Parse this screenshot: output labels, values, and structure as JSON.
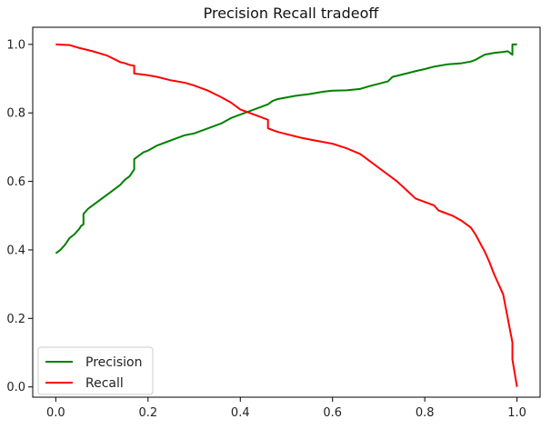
{
  "chart_data": {
    "type": "line",
    "title": "Precision Recall tradeoff",
    "xlabel": "",
    "ylabel": "",
    "xlim": [
      -0.05,
      1.05
    ],
    "ylim": [
      -0.03,
      1.05
    ],
    "x_ticks": [
      "0.0",
      "0.2",
      "0.4",
      "0.6",
      "0.8",
      "1.0"
    ],
    "y_ticks": [
      "0.0",
      "0.2",
      "0.4",
      "0.6",
      "0.8",
      "1.0"
    ],
    "grid": false,
    "legend_position": "lower-left",
    "series": [
      {
        "name": "Precision",
        "color": "#008000",
        "points": [
          [
            0.0,
            0.39
          ],
          [
            0.01,
            0.4
          ],
          [
            0.02,
            0.415
          ],
          [
            0.03,
            0.435
          ],
          [
            0.04,
            0.445
          ],
          [
            0.05,
            0.46
          ],
          [
            0.055,
            0.47
          ],
          [
            0.06,
            0.475
          ],
          [
            0.06,
            0.505
          ],
          [
            0.07,
            0.52
          ],
          [
            0.08,
            0.53
          ],
          [
            0.09,
            0.54
          ],
          [
            0.1,
            0.55
          ],
          [
            0.12,
            0.57
          ],
          [
            0.14,
            0.59
          ],
          [
            0.15,
            0.605
          ],
          [
            0.16,
            0.615
          ],
          [
            0.17,
            0.635
          ],
          [
            0.17,
            0.665
          ],
          [
            0.18,
            0.675
          ],
          [
            0.19,
            0.685
          ],
          [
            0.2,
            0.69
          ],
          [
            0.22,
            0.705
          ],
          [
            0.24,
            0.715
          ],
          [
            0.26,
            0.725
          ],
          [
            0.28,
            0.735
          ],
          [
            0.3,
            0.74
          ],
          [
            0.32,
            0.75
          ],
          [
            0.34,
            0.76
          ],
          [
            0.36,
            0.77
          ],
          [
            0.38,
            0.785
          ],
          [
            0.4,
            0.795
          ],
          [
            0.42,
            0.805
          ],
          [
            0.44,
            0.815
          ],
          [
            0.46,
            0.825
          ],
          [
            0.47,
            0.835
          ],
          [
            0.48,
            0.84
          ],
          [
            0.5,
            0.845
          ],
          [
            0.52,
            0.85
          ],
          [
            0.55,
            0.855
          ],
          [
            0.58,
            0.862
          ],
          [
            0.6,
            0.865
          ],
          [
            0.63,
            0.866
          ],
          [
            0.66,
            0.87
          ],
          [
            0.68,
            0.878
          ],
          [
            0.7,
            0.885
          ],
          [
            0.72,
            0.892
          ],
          [
            0.73,
            0.905
          ],
          [
            0.76,
            0.915
          ],
          [
            0.78,
            0.922
          ],
          [
            0.8,
            0.928
          ],
          [
            0.82,
            0.935
          ],
          [
            0.85,
            0.942
          ],
          [
            0.88,
            0.945
          ],
          [
            0.9,
            0.95
          ],
          [
            0.91,
            0.955
          ],
          [
            0.93,
            0.97
          ],
          [
            0.95,
            0.975
          ],
          [
            0.97,
            0.978
          ],
          [
            0.98,
            0.98
          ],
          [
            0.99,
            0.97
          ],
          [
            0.99,
            1.0
          ],
          [
            1.0,
            1.0
          ]
        ]
      },
      {
        "name": "Recall",
        "color": "#ff0000",
        "points": [
          [
            0.0,
            1.0
          ],
          [
            0.03,
            0.998
          ],
          [
            0.05,
            0.99
          ],
          [
            0.08,
            0.98
          ],
          [
            0.11,
            0.968
          ],
          [
            0.13,
            0.955
          ],
          [
            0.14,
            0.948
          ],
          [
            0.15,
            0.945
          ],
          [
            0.16,
            0.94
          ],
          [
            0.17,
            0.938
          ],
          [
            0.17,
            0.915
          ],
          [
            0.2,
            0.91
          ],
          [
            0.22,
            0.905
          ],
          [
            0.25,
            0.895
          ],
          [
            0.28,
            0.888
          ],
          [
            0.3,
            0.88
          ],
          [
            0.33,
            0.865
          ],
          [
            0.36,
            0.845
          ],
          [
            0.38,
            0.83
          ],
          [
            0.4,
            0.81
          ],
          [
            0.42,
            0.8
          ],
          [
            0.44,
            0.79
          ],
          [
            0.46,
            0.78
          ],
          [
            0.46,
            0.755
          ],
          [
            0.48,
            0.745
          ],
          [
            0.5,
            0.738
          ],
          [
            0.53,
            0.728
          ],
          [
            0.56,
            0.72
          ],
          [
            0.6,
            0.71
          ],
          [
            0.63,
            0.697
          ],
          [
            0.66,
            0.68
          ],
          [
            0.68,
            0.66
          ],
          [
            0.7,
            0.64
          ],
          [
            0.72,
            0.62
          ],
          [
            0.74,
            0.6
          ],
          [
            0.76,
            0.575
          ],
          [
            0.78,
            0.55
          ],
          [
            0.8,
            0.54
          ],
          [
            0.82,
            0.53
          ],
          [
            0.83,
            0.515
          ],
          [
            0.84,
            0.51
          ],
          [
            0.86,
            0.5
          ],
          [
            0.88,
            0.485
          ],
          [
            0.9,
            0.465
          ],
          [
            0.91,
            0.445
          ],
          [
            0.92,
            0.42
          ],
          [
            0.93,
            0.395
          ],
          [
            0.94,
            0.365
          ],
          [
            0.95,
            0.33
          ],
          [
            0.96,
            0.3
          ],
          [
            0.97,
            0.27
          ],
          [
            0.98,
            0.2
          ],
          [
            0.99,
            0.13
          ],
          [
            0.99,
            0.08
          ],
          [
            1.0,
            0.0
          ]
        ]
      }
    ]
  }
}
